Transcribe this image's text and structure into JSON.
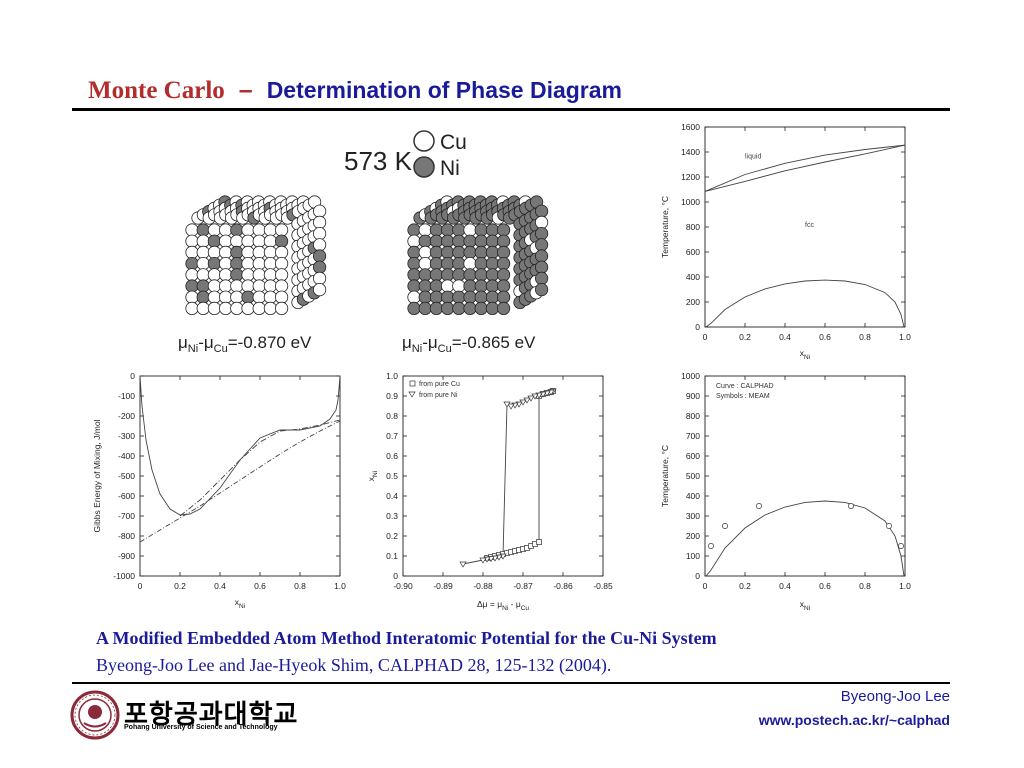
{
  "slide": {
    "title_part1": "Monte Carlo",
    "title_dash": "–",
    "title_part2": "Determination of Phase Diagram",
    "reference_title": "A Modified Embedded Atom Method Interatomic Potential for the Cu-Ni System",
    "reference_citation": "Byeong-Joo Lee and Jae-Hyeok Shim, CALPHAD 28, 125-132 (2004).",
    "author": "Byeong-Joo Lee",
    "url": "www.postech.ac.kr/~calphad",
    "logo_korean": "포항공과대학교",
    "logo_english": "Pohang University of Science and Technology"
  },
  "simulation": {
    "temperature_label": "573 K",
    "legend": [
      "Cu",
      "Ni"
    ],
    "colors": {
      "Cu": "#ffffff",
      "Ni": "#777777"
    },
    "panel_left": {
      "mu_prefix": "μ",
      "sub1": "Ni",
      "minus": "-μ",
      "sub2": "Cu",
      "value": "=-0.870 eV",
      "ni_fraction": 0.15
    },
    "panel_right": {
      "mu_prefix": "μ",
      "sub1": "Ni",
      "minus": "-μ",
      "sub2": "Cu",
      "value": "=-0.865 eV",
      "ni_fraction": 0.88
    }
  },
  "chart_data": [
    {
      "type": "line",
      "name": "phase-diagram",
      "xlabel_main": "x",
      "xlabel_sub": "Ni",
      "ylabel": "Temperature, °C",
      "xlim": [
        0,
        1
      ],
      "ylim": [
        0,
        1600
      ],
      "xticks": [
        "0",
        "0.2",
        "0.4",
        "0.6",
        "0.8",
        "1.0"
      ],
      "yticks": [
        "0",
        "200",
        "400",
        "600",
        "800",
        "1000",
        "1200",
        "1400",
        "1600"
      ],
      "annotations": [
        {
          "text": "liquid",
          "x": 0.2,
          "y": 1350
        },
        {
          "text": "fcc",
          "x": 0.5,
          "y": 800
        }
      ],
      "series": [
        {
          "x": [
            0,
            0.2,
            0.4,
            0.6,
            0.8,
            1.0
          ],
          "y": [
            1085,
            1165,
            1250,
            1320,
            1385,
            1455
          ]
        },
        {
          "x": [
            0,
            0.2,
            0.4,
            0.6,
            0.8,
            1.0
          ],
          "y": [
            1085,
            1220,
            1310,
            1375,
            1420,
            1455
          ]
        },
        {
          "x": [
            0.005,
            0.03,
            0.1,
            0.2,
            0.3,
            0.4,
            0.5,
            0.6,
            0.7,
            0.8,
            0.9,
            0.95,
            0.98,
            0.995
          ],
          "y": [
            0,
            30,
            140,
            240,
            305,
            345,
            368,
            375,
            368,
            340,
            275,
            200,
            100,
            0
          ]
        }
      ]
    },
    {
      "type": "line",
      "name": "gibbs-energy",
      "xlabel_main": "x",
      "xlabel_sub": "Ni",
      "ylabel": "Gibbs Energy of Mixing, J/mol",
      "xlim": [
        0,
        1
      ],
      "ylim": [
        -1000,
        0
      ],
      "xticks": [
        "0",
        "0.2",
        "0.4",
        "0.6",
        "0.8",
        "1.0"
      ],
      "yticks": [
        "0",
        "-100",
        "-200",
        "-300",
        "-400",
        "-500",
        "-600",
        "-700",
        "-800",
        "-900",
        "-1000"
      ],
      "series": [
        {
          "x": [
            0,
            0.01,
            0.03,
            0.06,
            0.1,
            0.15,
            0.2,
            0.25,
            0.3,
            0.4,
            0.5,
            0.6,
            0.7,
            0.8,
            0.9,
            0.95,
            0.98,
            0.99,
            1.0
          ],
          "y": [
            0,
            -150,
            -320,
            -470,
            -590,
            -665,
            -695,
            -690,
            -665,
            -560,
            -420,
            -310,
            -270,
            -270,
            -250,
            -215,
            -170,
            -120,
            0
          ]
        },
        {
          "x": [
            0,
            0.1,
            0.2,
            0.3,
            0.4,
            0.5,
            0.6,
            0.7,
            0.8,
            0.9,
            1.0
          ],
          "y": [
            -830,
            -770,
            -710,
            -650,
            -585,
            -520,
            -455,
            -390,
            -330,
            -275,
            -225
          ]
        },
        {
          "x": [
            0.2,
            0.3,
            0.4,
            0.5,
            0.6,
            0.7,
            0.8,
            0.9,
            1.0
          ],
          "y": [
            -700,
            -620,
            -520,
            -420,
            -330,
            -275,
            -265,
            -245,
            -220
          ]
        }
      ]
    },
    {
      "type": "scatter",
      "name": "hysteresis",
      "xlabel_main": "Δμ = μ",
      "xlabel_sub1": "Ni",
      "xlabel_mid": " - μ",
      "xlabel_sub2": "Cu",
      "ylabel_main": "x",
      "ylabel_sub": "Ni",
      "xlim": [
        -0.9,
        -0.85
      ],
      "ylim": [
        0,
        1.0
      ],
      "xticks": [
        "-0.90",
        "-0.89",
        "-0.88",
        "-0.87",
        "-0.86",
        "-0.85"
      ],
      "yticks": [
        "0",
        "0.1",
        "0.2",
        "0.3",
        "0.4",
        "0.5",
        "0.6",
        "0.7",
        "0.8",
        "0.9",
        "1.0"
      ],
      "legend": [
        "from pure Cu",
        "from pure Ni"
      ],
      "series": [
        {
          "name": "from pure Cu",
          "x": [
            -0.879,
            -0.878,
            -0.877,
            -0.876,
            -0.875,
            -0.874,
            -0.873,
            -0.872,
            -0.871,
            -0.87,
            -0.869,
            -0.868,
            -0.867,
            -0.866,
            -0.866,
            -0.865,
            -0.864,
            -0.863,
            -0.8625
          ],
          "y": [
            0.09,
            0.095,
            0.1,
            0.105,
            0.11,
            0.115,
            0.12,
            0.125,
            0.13,
            0.135,
            0.14,
            0.15,
            0.16,
            0.17,
            0.9,
            0.91,
            0.915,
            0.92,
            0.925
          ]
        },
        {
          "name": "from pure Ni",
          "x": [
            -0.8625,
            -0.863,
            -0.864,
            -0.865,
            -0.866,
            -0.867,
            -0.868,
            -0.869,
            -0.87,
            -0.871,
            -0.872,
            -0.873,
            -0.874,
            -0.875,
            -0.876,
            -0.877,
            -0.878,
            -0.879,
            -0.88,
            -0.885
          ],
          "y": [
            0.925,
            0.92,
            0.915,
            0.91,
            0.905,
            0.9,
            0.89,
            0.88,
            0.87,
            0.86,
            0.855,
            0.85,
            0.86,
            0.1,
            0.095,
            0.09,
            0.088,
            0.085,
            0.08,
            0.06
          ]
        }
      ]
    },
    {
      "type": "scatter",
      "name": "calphad-vs-meam",
      "xlabel_main": "x",
      "xlabel_sub": "Ni",
      "ylabel": "Temperature, °C",
      "xlim": [
        0,
        1
      ],
      "ylim": [
        0,
        1000
      ],
      "xticks": [
        "0",
        "0.2",
        "0.4",
        "0.6",
        "0.8",
        "1.0"
      ],
      "yticks": [
        "0",
        "100",
        "200",
        "300",
        "400",
        "500",
        "600",
        "700",
        "800",
        "900",
        "1000"
      ],
      "legend_lines": [
        "Curve : CALPHAD",
        "Symbols : MEAM"
      ],
      "series": [
        {
          "name": "Curve : CALPHAD",
          "x": [
            0.005,
            0.03,
            0.1,
            0.2,
            0.3,
            0.4,
            0.5,
            0.6,
            0.7,
            0.8,
            0.9,
            0.95,
            0.98,
            0.995
          ],
          "y": [
            0,
            30,
            140,
            240,
            305,
            345,
            368,
            375,
            368,
            340,
            275,
            200,
            100,
            0
          ]
        },
        {
          "name": "Symbols : MEAM",
          "x": [
            0.03,
            0.1,
            0.27,
            0.73,
            0.92,
            0.98
          ],
          "y": [
            150,
            250,
            350,
            350,
            250,
            150
          ]
        }
      ]
    }
  ]
}
